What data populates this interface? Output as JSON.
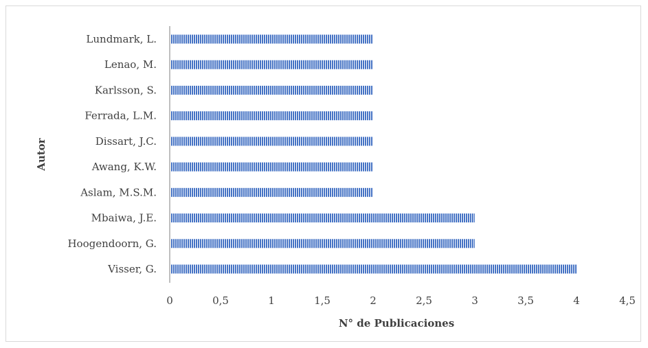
{
  "chart_data": {
    "type": "bar",
    "orientation": "horizontal",
    "categories": [
      "Visser, G.",
      "Hoogendoorn, G.",
      "Mbaiwa, J.E.",
      "Aslam, M.S.M.",
      "Awang, K.W.",
      "Dissart, J.C.",
      "Ferrada, L.M.",
      "Karlsson, S.",
      "Lenao, M.",
      "Lundmark, L."
    ],
    "values": [
      4,
      3,
      3,
      2,
      2,
      2,
      2,
      2,
      2,
      2
    ],
    "xlabel": "N° de Publicaciones",
    "ylabel": "Autor",
    "xlim": [
      0,
      4.5
    ],
    "x_ticks": [
      "0",
      "0,5",
      "1",
      "1,5",
      "2",
      "2,5",
      "3",
      "3,5",
      "4",
      "4,5"
    ],
    "grid": false,
    "bar_color": "#4472c4",
    "bar_pattern": "vertical-stripes"
  }
}
